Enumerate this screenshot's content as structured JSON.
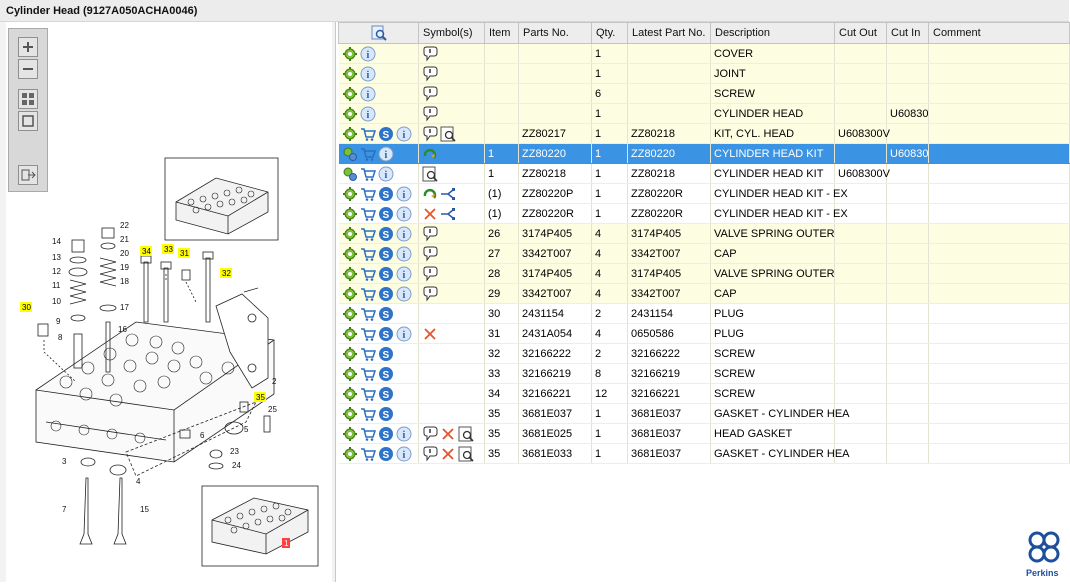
{
  "window": {
    "title": "Cylinder Head (9127A050ACHA0046)"
  },
  "toolbar": {
    "zoom_in": "zoom-in-icon",
    "zoom_out": "zoom-out-icon",
    "fit": "fit-all-icon",
    "fit_page": "fit-page-icon",
    "export": "export-icon"
  },
  "diagram": {
    "callouts": [
      "30",
      "34",
      "33",
      "31",
      "32",
      "35",
      "1"
    ],
    "labels": [
      "14",
      "13",
      "12",
      "11",
      "10",
      "9",
      "8",
      "22",
      "21",
      "20",
      "19",
      "18",
      "17",
      "16",
      "2",
      "25",
      "5",
      "6",
      "3",
      "4",
      "7",
      "15",
      "23",
      "24"
    ]
  },
  "grid": {
    "columns": [
      "",
      "Symbol(s)",
      "Item",
      "Parts No.",
      "Qty.",
      "Latest Part No.",
      "Description",
      "Cut Out",
      "Cut In",
      "Comment"
    ],
    "rows": [
      {
        "style": "yellow",
        "icons": [
          "gear",
          "info"
        ],
        "symbols": [
          "bubble"
        ],
        "item": "",
        "part": "",
        "qty": "1",
        "latest": "",
        "desc": "COVER",
        "cutout": "",
        "cutin": ""
      },
      {
        "style": "yellow",
        "icons": [
          "gear",
          "info"
        ],
        "symbols": [
          "bubble"
        ],
        "item": "",
        "part": "",
        "qty": "1",
        "latest": "",
        "desc": "JOINT",
        "cutout": "",
        "cutin": ""
      },
      {
        "style": "yellow",
        "icons": [
          "gear",
          "info"
        ],
        "symbols": [
          "bubble"
        ],
        "item": "",
        "part": "",
        "qty": "6",
        "latest": "",
        "desc": "SCREW",
        "cutout": "",
        "cutin": ""
      },
      {
        "style": "yellow",
        "icons": [
          "gear",
          "info"
        ],
        "symbols": [
          "bubble"
        ],
        "item": "",
        "part": "",
        "qty": "1",
        "latest": "",
        "desc": "CYLINDER HEAD",
        "cutout": "",
        "cutin": "U60830"
      },
      {
        "style": "yellow",
        "icons": [
          "gear",
          "cart",
          "s",
          "info"
        ],
        "symbols": [
          "bubble",
          "doc"
        ],
        "item": "",
        "part": "ZZ80217",
        "qty": "1",
        "latest": "ZZ80218",
        "desc": "KIT, CYL. HEAD",
        "cutout": "U608300V",
        "cutin": ""
      },
      {
        "style": "selected",
        "icons": [
          "gears",
          "cart",
          "info"
        ],
        "symbols": [
          "recycle"
        ],
        "item": "1",
        "part": "ZZ80220",
        "qty": "1",
        "latest": "ZZ80220",
        "desc": "CYLINDER HEAD KIT",
        "cutout": "",
        "cutin": "U60830"
      },
      {
        "style": "white",
        "icons": [
          "gears",
          "cart",
          "info"
        ],
        "symbols": [
          "doc"
        ],
        "item": "1",
        "part": "ZZ80218",
        "qty": "1",
        "latest": "ZZ80218",
        "desc": "CYLINDER HEAD KIT",
        "cutout": "U608300V",
        "cutin": ""
      },
      {
        "style": "white",
        "icons": [
          "gear",
          "cart",
          "s",
          "info"
        ],
        "symbols": [
          "recycle",
          "branch"
        ],
        "item": "(1)",
        "part": "ZZ80220P",
        "qty": "1",
        "latest": "ZZ80220R",
        "desc": "CYLINDER HEAD KIT - EX",
        "cutout": "",
        "cutin": ""
      },
      {
        "style": "white",
        "icons": [
          "gear",
          "cart",
          "s",
          "info"
        ],
        "symbols": [
          "cross",
          "branch"
        ],
        "item": "(1)",
        "part": "ZZ80220R",
        "qty": "1",
        "latest": "ZZ80220R",
        "desc": "CYLINDER HEAD KIT - EX",
        "cutout": "",
        "cutin": ""
      },
      {
        "style": "yellow",
        "icons": [
          "gear",
          "cart",
          "s",
          "info"
        ],
        "symbols": [
          "bubble"
        ],
        "item": "26",
        "part": "3174P405",
        "qty": "4",
        "latest": "3174P405",
        "desc": "VALVE SPRING OUTER",
        "cutout": "",
        "cutin": ""
      },
      {
        "style": "yellow",
        "icons": [
          "gear",
          "cart",
          "s",
          "info"
        ],
        "symbols": [
          "bubble"
        ],
        "item": "27",
        "part": "3342T007",
        "qty": "4",
        "latest": "3342T007",
        "desc": "CAP",
        "cutout": "",
        "cutin": ""
      },
      {
        "style": "yellow",
        "icons": [
          "gear",
          "cart",
          "s",
          "info"
        ],
        "symbols": [
          "bubble"
        ],
        "item": "28",
        "part": "3174P405",
        "qty": "4",
        "latest": "3174P405",
        "desc": "VALVE SPRING OUTER",
        "cutout": "",
        "cutin": ""
      },
      {
        "style": "yellow",
        "icons": [
          "gear",
          "cart",
          "s",
          "info"
        ],
        "symbols": [
          "bubble"
        ],
        "item": "29",
        "part": "3342T007",
        "qty": "4",
        "latest": "3342T007",
        "desc": "CAP",
        "cutout": "",
        "cutin": ""
      },
      {
        "style": "white",
        "icons": [
          "gear",
          "cart",
          "s"
        ],
        "symbols": [],
        "item": "30",
        "part": "2431154",
        "qty": "2",
        "latest": "2431154",
        "desc": "PLUG",
        "cutout": "",
        "cutin": ""
      },
      {
        "style": "white",
        "icons": [
          "gear",
          "cart",
          "s",
          "info"
        ],
        "symbols": [
          "cross"
        ],
        "item": "31",
        "part": "2431A054",
        "qty": "4",
        "latest": "0650586",
        "desc": "PLUG",
        "cutout": "",
        "cutin": ""
      },
      {
        "style": "white",
        "icons": [
          "gear",
          "cart",
          "s"
        ],
        "symbols": [],
        "item": "32",
        "part": "32166222",
        "qty": "2",
        "latest": "32166222",
        "desc": "SCREW",
        "cutout": "",
        "cutin": ""
      },
      {
        "style": "white",
        "icons": [
          "gear",
          "cart",
          "s"
        ],
        "symbols": [],
        "item": "33",
        "part": "32166219",
        "qty": "8",
        "latest": "32166219",
        "desc": "SCREW",
        "cutout": "",
        "cutin": ""
      },
      {
        "style": "white",
        "icons": [
          "gear",
          "cart",
          "s"
        ],
        "symbols": [],
        "item": "34",
        "part": "32166221",
        "qty": "12",
        "latest": "32166221",
        "desc": "SCREW",
        "cutout": "",
        "cutin": ""
      },
      {
        "style": "white",
        "icons": [
          "gear",
          "cart",
          "s"
        ],
        "symbols": [],
        "item": "35",
        "part": "3681E037",
        "qty": "1",
        "latest": "3681E037",
        "desc": "GASKET - CYLINDER HEA",
        "cutout": "",
        "cutin": ""
      },
      {
        "style": "white",
        "icons": [
          "gear",
          "cart",
          "s",
          "info"
        ],
        "symbols": [
          "bubble",
          "cross",
          "doc"
        ],
        "item": "35",
        "part": "3681E025",
        "qty": "1",
        "latest": "3681E037",
        "desc": "HEAD GASKET",
        "cutout": "",
        "cutin": ""
      },
      {
        "style": "white",
        "icons": [
          "gear",
          "cart",
          "s",
          "info"
        ],
        "symbols": [
          "bubble",
          "cross",
          "doc"
        ],
        "item": "35",
        "part": "3681E033",
        "qty": "1",
        "latest": "3681E037",
        "desc": "GASKET - CYLINDER HEA",
        "cutout": "",
        "cutin": ""
      }
    ]
  },
  "brand": {
    "name": "Perkins",
    "color": "#1d4f9c"
  },
  "colors": {
    "selected": "#3a94e3",
    "row_yellow": "#fdfde2",
    "callout": "#ffff00"
  }
}
